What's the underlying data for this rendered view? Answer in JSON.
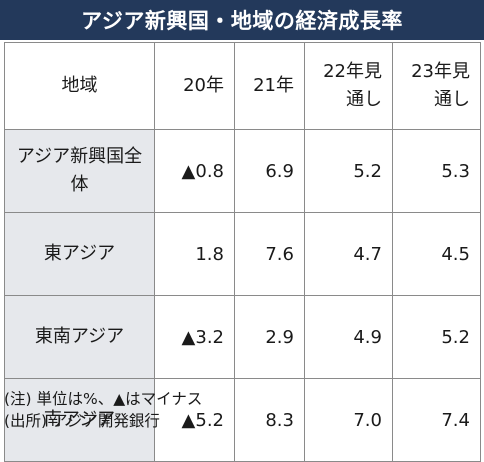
{
  "title": "アジア新興国・地域の経済成長率",
  "table": {
    "headers": [
      "地域",
      "20年",
      "21年",
      "22年見通し",
      "23年見通し"
    ],
    "rows": [
      {
        "region": "アジア新興国全体",
        "values": [
          "▲0.8",
          "6.9",
          "5.2",
          "5.3"
        ]
      },
      {
        "region": "東アジア",
        "values": [
          "1.8",
          "7.6",
          "4.7",
          "4.5"
        ]
      },
      {
        "region": "東南アジア",
        "values": [
          "▲3.2",
          "2.9",
          "4.9",
          "5.2"
        ]
      },
      {
        "region": "南アジア",
        "values": [
          "▲5.2",
          "8.3",
          "7.0",
          "7.4"
        ]
      }
    ]
  },
  "notes": {
    "note": "(注) 単位は%、▲はマイナス",
    "source": "(出所) アジア開発銀行"
  }
}
